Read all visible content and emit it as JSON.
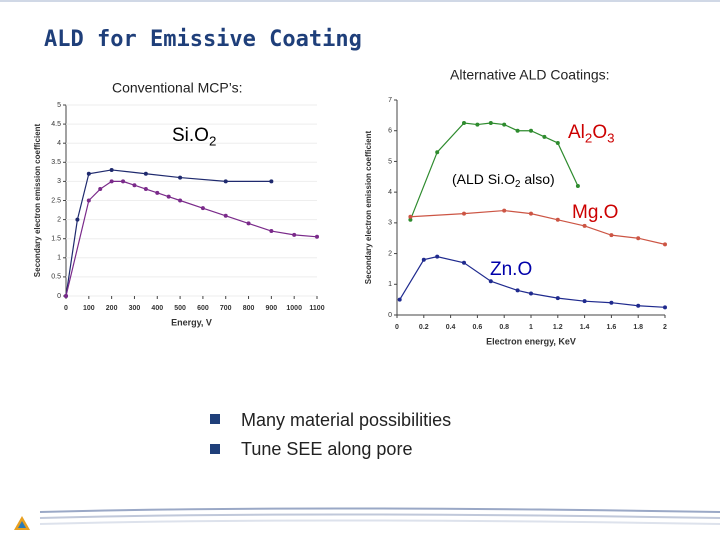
{
  "title": "ALD for Emissive Coating",
  "left_heading": "Conventional MCP’s:",
  "right_heading": "Alternative ALD Coatings:",
  "bullets": [
    "Many material possibilities",
    "Tune SEE along pore"
  ],
  "chart_data": [
    {
      "type": "line",
      "xlabel": "Energy, V",
      "ylabel": "Secondary electron emission coefficient",
      "xlim": [
        0,
        1100
      ],
      "xticks": [
        0,
        100,
        200,
        300,
        400,
        500,
        600,
        700,
        800,
        900,
        1000,
        1100
      ],
      "ylim": [
        0,
        5
      ],
      "yticks": [
        0,
        0.5,
        1,
        1.5,
        2,
        2.5,
        3,
        3.5,
        4,
        4.5,
        5
      ],
      "annotations": [
        {
          "parts": [
            {
              "t": "Si.O",
              "sub": false
            },
            {
              "t": "2",
              "sub": true
            }
          ],
          "color": "#000000"
        }
      ],
      "series": [
        {
          "color": "#1f2a6e",
          "x": [
            0,
            50,
            100,
            200,
            350,
            500,
            700,
            900
          ],
          "values": [
            0,
            2,
            3.2,
            3.3,
            3.2,
            3.1,
            3.0,
            3.0
          ]
        },
        {
          "color": "#7a2a8a",
          "x": [
            0,
            100,
            150,
            200,
            250,
            300,
            350,
            400,
            450,
            500,
            600,
            700,
            800,
            900,
            1000,
            1100
          ],
          "values": [
            0,
            2.5,
            2.8,
            3.0,
            3.0,
            2.9,
            2.8,
            2.7,
            2.6,
            2.5,
            2.3,
            2.1,
            1.9,
            1.7,
            1.6,
            1.55
          ]
        }
      ]
    },
    {
      "type": "line",
      "xlabel": "Electron energy, KeV",
      "ylabel": "Secondary electron emission coefficient",
      "xlim": [
        0,
        2
      ],
      "xticks": [
        0,
        0.2,
        0.4,
        0.6,
        0.8,
        1,
        1.2,
        1.4,
        1.6,
        1.8,
        2
      ],
      "ylim": [
        0,
        7
      ],
      "yticks": [
        0,
        1,
        2,
        3,
        4,
        5,
        6,
        7
      ],
      "annotations": [
        {
          "parts": [
            {
              "t": "Al",
              "sub": false
            },
            {
              "t": "2",
              "sub": true
            },
            {
              "t": "O",
              "sub": false
            },
            {
              "t": "3",
              "sub": true
            }
          ],
          "color": "#cc0000"
        },
        {
          "parts": [
            {
              "t": "(ALD Si.O",
              "sub": false
            },
            {
              "t": "2",
              "sub": true
            },
            {
              "t": " also)",
              "sub": false
            }
          ],
          "color": "#000000"
        },
        {
          "parts": [
            {
              "t": "Mg.O",
              "sub": false
            }
          ],
          "color": "#cc0000"
        },
        {
          "parts": [
            {
              "t": "Zn.O",
              "sub": false
            }
          ],
          "color": "#0000aa"
        }
      ],
      "series": [
        {
          "color": "#2e8b2e",
          "x": [
            0.1,
            0.3,
            0.5,
            0.6,
            0.7,
            0.8,
            0.9,
            1.0,
            1.1,
            1.2,
            1.35
          ],
          "values": [
            3.1,
            5.3,
            6.25,
            6.2,
            6.25,
            6.2,
            6.0,
            6.0,
            5.8,
            5.6,
            4.2
          ]
        },
        {
          "color": "#cc5544",
          "x": [
            0.1,
            0.5,
            0.8,
            1.0,
            1.2,
            1.4,
            1.6,
            1.8,
            2.0
          ],
          "values": [
            3.2,
            3.3,
            3.4,
            3.3,
            3.1,
            2.9,
            2.6,
            2.5,
            2.3
          ]
        },
        {
          "color": "#1f2a8e",
          "x": [
            0.02,
            0.2,
            0.3,
            0.5,
            0.7,
            0.9,
            1.0,
            1.2,
            1.4,
            1.6,
            1.8,
            2.0
          ],
          "values": [
            0.5,
            1.8,
            1.9,
            1.7,
            1.1,
            0.8,
            0.7,
            0.55,
            0.45,
            0.4,
            0.3,
            0.25
          ]
        }
      ]
    }
  ]
}
